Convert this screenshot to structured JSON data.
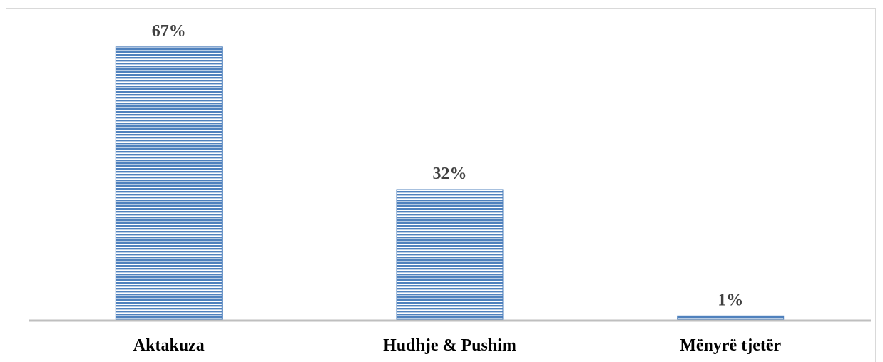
{
  "chart_data": {
    "type": "bar",
    "categories": [
      "Aktakuza",
      "Hudhje & Pushim",
      "Mënyrë tjetër"
    ],
    "values": [
      67,
      32,
      1
    ],
    "data_labels": [
      "67%",
      "32%",
      "1%"
    ],
    "title": "",
    "xlabel": "",
    "ylabel": "",
    "ylim": [
      0,
      75
    ],
    "grid": false,
    "legend": "none",
    "colors": {
      "bar_fill": "#ffffff",
      "bar_stripe": "#4f81bd",
      "axis": "#bfbfbf",
      "data_label": "#404040",
      "category_label": "#000000"
    }
  }
}
